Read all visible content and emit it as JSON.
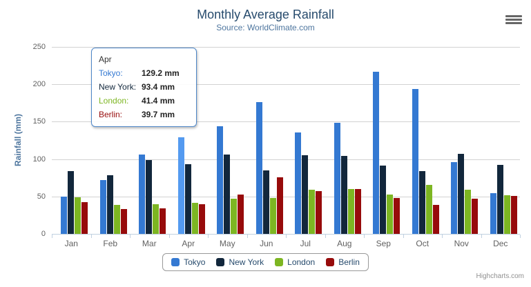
{
  "header": {
    "title": "Monthly Average Rainfall",
    "subtitle": "Source: WorldClimate.com"
  },
  "chart_data": {
    "type": "bar",
    "title": "Monthly Average Rainfall",
    "subtitle": "Source: WorldClimate.com",
    "categories": [
      "Jan",
      "Feb",
      "Mar",
      "Apr",
      "May",
      "Jun",
      "Jul",
      "Aug",
      "Sep",
      "Oct",
      "Nov",
      "Dec"
    ],
    "series": [
      {
        "name": "Tokyo",
        "color": "#3479d2",
        "hover_color": "#549af0",
        "values": [
          49.9,
          71.5,
          106.4,
          129.2,
          144.0,
          176.0,
          135.6,
          148.5,
          216.4,
          194.1,
          95.6,
          54.4
        ]
      },
      {
        "name": "New York",
        "color": "#12273c",
        "values": [
          83.6,
          78.8,
          98.5,
          93.4,
          106.0,
          84.5,
          105.0,
          104.3,
          91.2,
          83.5,
          106.6,
          92.3
        ]
      },
      {
        "name": "London",
        "color": "#7db622",
        "values": [
          48.9,
          38.8,
          39.3,
          41.4,
          47.0,
          48.3,
          59.0,
          59.6,
          52.4,
          65.2,
          59.3,
          51.2
        ]
      },
      {
        "name": "Berlin",
        "color": "#970b0b",
        "values": [
          42.4,
          33.2,
          34.5,
          39.7,
          52.6,
          75.5,
          57.4,
          60.4,
          47.6,
          39.1,
          46.8,
          51.1
        ]
      }
    ],
    "xlabel": "",
    "ylabel": "Rainfall (mm)",
    "ylim": [
      0,
      250
    ],
    "ytick_step": 50,
    "grid": true,
    "legend_position": "bottom"
  },
  "tooltip": {
    "header": "Apr",
    "border_color": "#4d86c8",
    "highlight": {
      "series": "Tokyo",
      "category": "Apr"
    },
    "rows": [
      {
        "label": "Tokyo:",
        "value": "129.2 mm",
        "color": "#3479d2"
      },
      {
        "label": "New York:",
        "value": "93.4 mm",
        "color": "#12273c"
      },
      {
        "label": "London:",
        "value": "41.4 mm",
        "color": "#7db622"
      },
      {
        "label": "Berlin:",
        "value": "39.7 mm",
        "color": "#970b0b"
      }
    ]
  },
  "credits": {
    "label": "Highcharts.com"
  }
}
